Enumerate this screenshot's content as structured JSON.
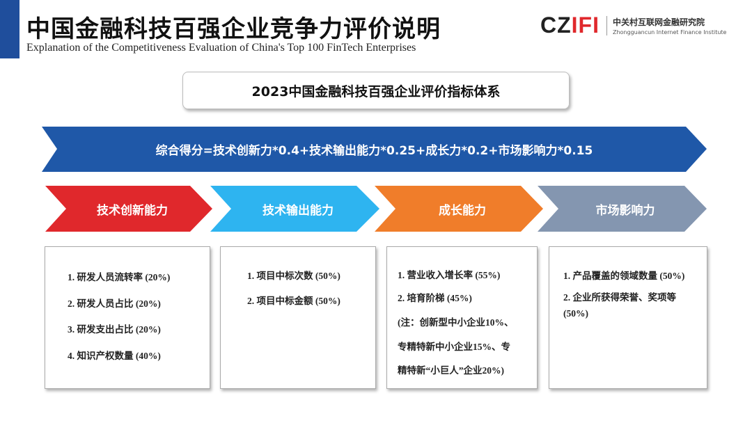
{
  "header": {
    "title": "中国金融科技百强企业竞争力评价说明",
    "subtitle": "Explanation of the Competitiveness Evaluation of China's Top 100 FinTech Enterprises",
    "logo": {
      "mark": "CZIFI",
      "name_cn": "中关村互联网金融研究院",
      "name_en": "Zhongguancun Internet Finance Institute"
    }
  },
  "system_title": "2023中国金融科技百强企业评价指标体系",
  "formula": "综合得分=技术创新力*0.4+技术输出能力*0.25+成长力*0.2+市场影响力*0.15",
  "colors": {
    "formula": "#1f58a8",
    "tech_innovation": "#e0282c",
    "tech_output": "#2eb4f0",
    "growth": "#f07d2a",
    "market": "#8496b0",
    "accent_bar": "#1f4e9c"
  },
  "categories": [
    {
      "label": "技术创新能力",
      "items": [
        "1. 研发人员流转率 (20%)",
        "2. 研发人员占比 (20%)",
        "3. 研发支出占比 (20%)",
        "4. 知识产权数量 (40%)"
      ]
    },
    {
      "label": "技术输出能力",
      "items": [
        "1. 项目中标次数 (50%)",
        "2. 项目中标金额 (50%)"
      ]
    },
    {
      "label": "成长能力",
      "items": [
        "1. 营业收入增长率 (55%)",
        "2. 培育阶梯 (45%)",
        "(注：创新型中小企业10%、",
        "专精特新中小企业15%、专",
        "精特新“小巨人”企业20%)"
      ]
    },
    {
      "label": "市场影响力",
      "items": [
        "1. 产品覆盖的领域数量 (50%)",
        "2. 企业所获得荣誉、奖项等",
        "(50%)"
      ]
    }
  ]
}
